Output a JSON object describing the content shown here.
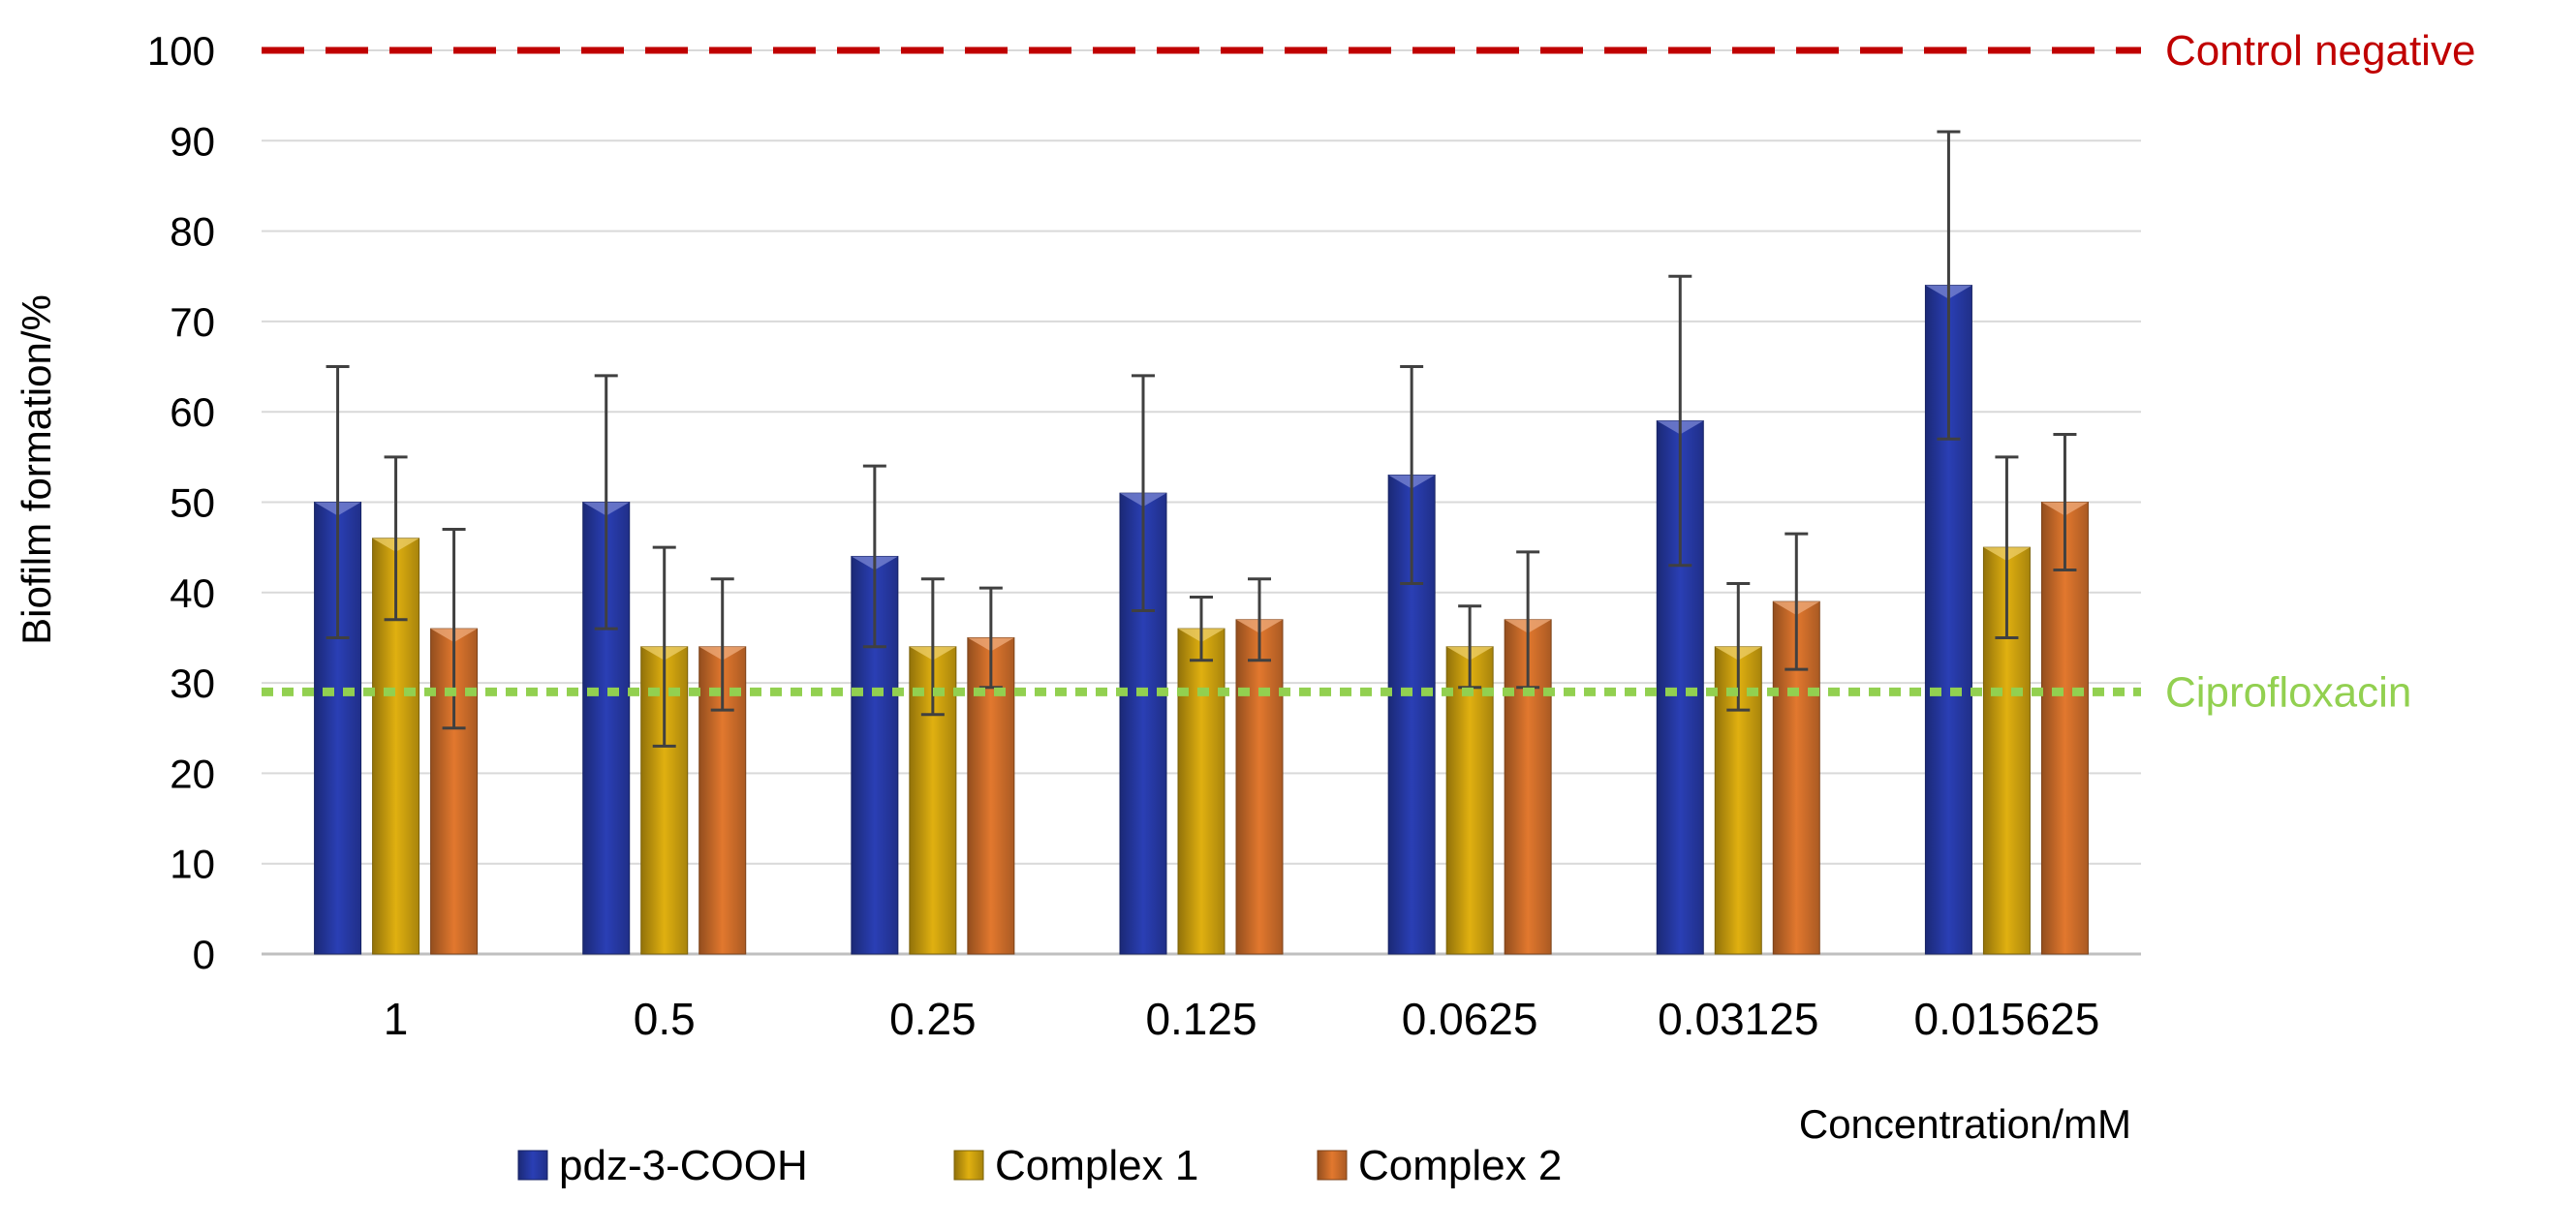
{
  "chart_data": {
    "type": "bar",
    "title": "",
    "xlabel": "Concentration/mM",
    "ylabel": "Biofilm formation/%",
    "ylim": [
      0,
      100
    ],
    "yticks": [
      0,
      10,
      20,
      30,
      40,
      50,
      60,
      70,
      80,
      90,
      100
    ],
    "grid": true,
    "categories": [
      "1",
      "0.5",
      "0.25",
      "0.125",
      "0.0625",
      "0.03125",
      "0.015625"
    ],
    "series": [
      {
        "name": "pdz-3-COOH",
        "color": "#2a3fb5",
        "values": [
          50,
          50,
          44,
          51,
          53,
          59,
          74
        ],
        "err_low": [
          35,
          36,
          34,
          38,
          41,
          43,
          57
        ],
        "err_high": [
          65,
          64,
          54,
          64,
          65,
          75,
          91
        ]
      },
      {
        "name": "Complex 1",
        "color": "#e0b010",
        "values": [
          46,
          34,
          34,
          36,
          34,
          34,
          45
        ],
        "err_low": [
          37,
          23,
          26.5,
          32.5,
          29.5,
          27,
          35
        ],
        "err_high": [
          55,
          45,
          41.5,
          39.5,
          38.5,
          41,
          55
        ]
      },
      {
        "name": "Complex 2",
        "color": "#e2782e",
        "values": [
          36,
          34,
          35,
          37,
          37,
          39,
          50
        ],
        "err_low": [
          25,
          27,
          29.5,
          32.5,
          29.5,
          31.5,
          42.5
        ],
        "err_high": [
          47,
          41.5,
          40.5,
          41.5,
          44.5,
          46.5,
          57.5
        ]
      }
    ],
    "reference_lines": [
      {
        "label": "Control negative",
        "value": 100,
        "color": "#c00000",
        "style": "dashed"
      },
      {
        "label": "Ciprofloxacin",
        "value": 29,
        "color": "#92d050",
        "style": "dotted"
      }
    ],
    "legend_position": "bottom-left"
  }
}
